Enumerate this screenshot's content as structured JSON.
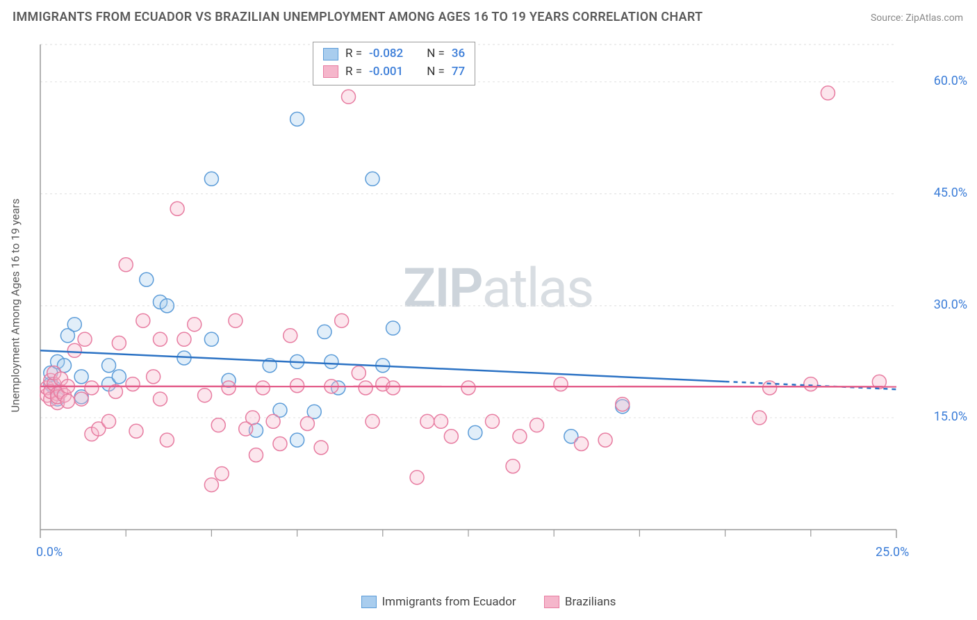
{
  "title": "IMMIGRANTS FROM ECUADOR VS BRAZILIAN UNEMPLOYMENT AMONG AGES 16 TO 19 YEARS CORRELATION CHART",
  "source": "Source: ZipAtlas.com",
  "y_axis_label": "Unemployment Among Ages 16 to 19 years",
  "watermark_b": "ZIP",
  "watermark_r": "atlas",
  "chart": {
    "type": "scatter",
    "xlim": [
      0,
      25
    ],
    "ylim": [
      0,
      65
    ],
    "x_ticks": [
      0,
      25
    ],
    "x_tick_labels": [
      "0.0%",
      "25.0%"
    ],
    "x_minor_ticks": [
      2.5,
      5,
      7.5,
      10,
      12.5,
      15,
      17.5,
      20,
      22.5
    ],
    "y_ticks": [
      15,
      30,
      45,
      60
    ],
    "y_tick_labels": [
      "15.0%",
      "30.0%",
      "45.0%",
      "60.0%"
    ],
    "background_color": "#ffffff",
    "grid_color": "#e4e4e4",
    "grid_dash": "3,4",
    "axis_line_color": "#999999",
    "marker_radius": 10,
    "marker_stroke_width": 1.5,
    "marker_fill_opacity": 0.35,
    "series": [
      {
        "name": "Immigrants from Ecuador",
        "color_stroke": "#5a9bd8",
        "color_fill": "#a9cdee",
        "trend_color": "#2b72c4",
        "trend_width": 2.5,
        "trend_solid_xmax": 20,
        "R": "-0.082",
        "N": "36",
        "trend": {
          "y_at_x0": 24.0,
          "y_at_xmax": 18.8
        },
        "points": [
          [
            0.3,
            19.5
          ],
          [
            0.3,
            21.0
          ],
          [
            0.4,
            19.0
          ],
          [
            0.5,
            22.5
          ],
          [
            0.5,
            17.5
          ],
          [
            0.7,
            22.0
          ],
          [
            0.8,
            26.0
          ],
          [
            1.0,
            27.5
          ],
          [
            1.2,
            20.5
          ],
          [
            1.2,
            17.8
          ],
          [
            2.0,
            22.0
          ],
          [
            2.0,
            19.5
          ],
          [
            2.3,
            20.5
          ],
          [
            3.1,
            33.5
          ],
          [
            3.5,
            30.5
          ],
          [
            3.7,
            30.0
          ],
          [
            4.2,
            23.0
          ],
          [
            5.0,
            25.5
          ],
          [
            5.0,
            47.0
          ],
          [
            5.5,
            20.0
          ],
          [
            6.3,
            13.3
          ],
          [
            6.7,
            22.0
          ],
          [
            7.0,
            16.0
          ],
          [
            7.5,
            22.5
          ],
          [
            7.5,
            12.0
          ],
          [
            7.5,
            55.0
          ],
          [
            8.0,
            15.8
          ],
          [
            8.3,
            26.5
          ],
          [
            8.5,
            22.5
          ],
          [
            8.7,
            19.0
          ],
          [
            9.7,
            47.0
          ],
          [
            10.0,
            22.0
          ],
          [
            10.3,
            27.0
          ],
          [
            12.7,
            13.0
          ],
          [
            15.5,
            12.5
          ],
          [
            17.0,
            16.5
          ]
        ]
      },
      {
        "name": "Brazilians",
        "color_stroke": "#e77ba0",
        "color_fill": "#f5b6cb",
        "trend_color": "#e35d8a",
        "trend_width": 2.5,
        "trend_solid_xmax": 25,
        "R": "-0.001",
        "N": "77",
        "trend": {
          "y_at_x0": 19.2,
          "y_at_xmax": 19.15
        },
        "points": [
          [
            0.2,
            18.0
          ],
          [
            0.2,
            19.0
          ],
          [
            0.3,
            17.5
          ],
          [
            0.3,
            20.0
          ],
          [
            0.3,
            18.5
          ],
          [
            0.4,
            19.5
          ],
          [
            0.4,
            21.0
          ],
          [
            0.5,
            18.2
          ],
          [
            0.5,
            17.0
          ],
          [
            0.5,
            17.8
          ],
          [
            0.6,
            18.5
          ],
          [
            0.6,
            20.2
          ],
          [
            0.7,
            18.0
          ],
          [
            0.8,
            17.2
          ],
          [
            0.8,
            19.2
          ],
          [
            1.0,
            24.0
          ],
          [
            1.2,
            17.5
          ],
          [
            1.3,
            25.5
          ],
          [
            1.5,
            12.8
          ],
          [
            1.5,
            19.0
          ],
          [
            1.7,
            13.5
          ],
          [
            2.0,
            14.5
          ],
          [
            2.2,
            18.5
          ],
          [
            2.3,
            25.0
          ],
          [
            2.5,
            35.5
          ],
          [
            2.7,
            19.5
          ],
          [
            2.8,
            13.2
          ],
          [
            3.0,
            28.0
          ],
          [
            3.3,
            20.5
          ],
          [
            3.5,
            17.5
          ],
          [
            3.5,
            25.5
          ],
          [
            3.7,
            12.0
          ],
          [
            4.0,
            43.0
          ],
          [
            4.2,
            25.5
          ],
          [
            4.5,
            27.5
          ],
          [
            4.8,
            18.0
          ],
          [
            5.0,
            6.0
          ],
          [
            5.2,
            14.0
          ],
          [
            5.3,
            7.5
          ],
          [
            5.5,
            19.0
          ],
          [
            5.7,
            28.0
          ],
          [
            6.0,
            13.5
          ],
          [
            6.2,
            15.0
          ],
          [
            6.3,
            10.0
          ],
          [
            6.5,
            19.0
          ],
          [
            6.8,
            14.5
          ],
          [
            7.0,
            11.5
          ],
          [
            7.3,
            26.0
          ],
          [
            7.5,
            19.3
          ],
          [
            7.8,
            14.2
          ],
          [
            8.2,
            11.0
          ],
          [
            8.5,
            19.2
          ],
          [
            8.8,
            28.0
          ],
          [
            9.0,
            58.0
          ],
          [
            9.3,
            21.0
          ],
          [
            9.5,
            19.0
          ],
          [
            9.7,
            14.5
          ],
          [
            10.0,
            19.5
          ],
          [
            10.3,
            19.0
          ],
          [
            11.0,
            7.0
          ],
          [
            11.3,
            14.5
          ],
          [
            11.7,
            14.5
          ],
          [
            12.0,
            12.5
          ],
          [
            12.5,
            19.0
          ],
          [
            13.2,
            14.5
          ],
          [
            13.8,
            8.5
          ],
          [
            14.0,
            12.5
          ],
          [
            14.5,
            14.0
          ],
          [
            15.2,
            19.5
          ],
          [
            15.8,
            11.5
          ],
          [
            16.5,
            12.0
          ],
          [
            17.0,
            16.8
          ],
          [
            21.0,
            15.0
          ],
          [
            21.3,
            19.0
          ],
          [
            22.5,
            19.5
          ],
          [
            23.0,
            58.5
          ],
          [
            24.5,
            19.8
          ]
        ]
      }
    ],
    "legend_top": {
      "R_label": "R =",
      "N_label": "N ="
    },
    "legend_bottom_series": [
      "Immigrants from Ecuador",
      "Brazilians"
    ]
  }
}
